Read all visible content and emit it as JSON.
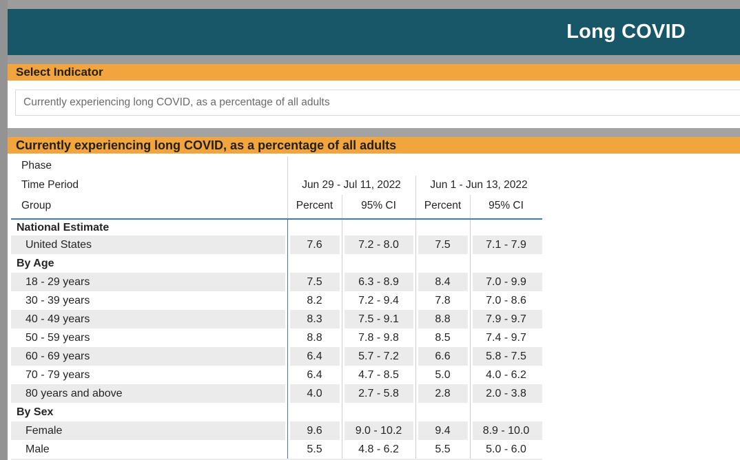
{
  "header": {
    "title": "Long COVID"
  },
  "indicator": {
    "label": "Select Indicator",
    "selected": "Currently experiencing long COVID, as a percentage of all adults"
  },
  "table": {
    "title": "Currently experiencing long COVID, as a percentage of all adults",
    "row_header_labels": [
      "Phase",
      "Time Period",
      "Group"
    ],
    "periods": [
      {
        "label": "Jun 29 - Jul 11, 2022",
        "columns": [
          "Percent",
          "95% CI"
        ]
      },
      {
        "label": "Jun 1 - Jun 13, 2022",
        "columns": [
          "Percent",
          "95% CI"
        ]
      }
    ],
    "rows": [
      {
        "type": "section",
        "label": "National Estimate"
      },
      {
        "type": "data",
        "label": "United States",
        "values": [
          "7.6",
          "7.2 - 8.0",
          "7.5",
          "7.1 - 7.9"
        ]
      },
      {
        "type": "section",
        "label": "By Age"
      },
      {
        "type": "data",
        "label": "18 - 29 years",
        "values": [
          "7.5",
          "6.3 - 8.9",
          "8.4",
          "7.0 - 9.9"
        ]
      },
      {
        "type": "data",
        "label": "30 - 39 years",
        "values": [
          "8.2",
          "7.2 - 9.4",
          "7.8",
          "7.0 - 8.6"
        ]
      },
      {
        "type": "data",
        "label": "40 - 49 years",
        "values": [
          "8.3",
          "7.5 - 9.1",
          "8.8",
          "7.9 - 9.7"
        ]
      },
      {
        "type": "data",
        "label": "50 - 59 years",
        "values": [
          "8.8",
          "7.8 - 9.8",
          "8.5",
          "7.4 - 9.7"
        ]
      },
      {
        "type": "data",
        "label": "60 - 69 years",
        "values": [
          "6.4",
          "5.7 - 7.2",
          "6.6",
          "5.8 - 7.5"
        ]
      },
      {
        "type": "data",
        "label": "70 - 79 years",
        "values": [
          "6.4",
          "4.7 - 8.5",
          "5.0",
          "4.0 - 6.2"
        ]
      },
      {
        "type": "data",
        "label": "80 years and above",
        "values": [
          "4.0",
          "2.7 - 5.8",
          "2.8",
          "2.0 - 3.8"
        ]
      },
      {
        "type": "section",
        "label": "By Sex"
      },
      {
        "type": "data",
        "label": "Female",
        "values": [
          "9.6",
          "9.0 - 10.2",
          "9.4",
          "8.9 - 10.0"
        ]
      },
      {
        "type": "data",
        "label": "Male",
        "values": [
          "5.5",
          "4.8 - 6.2",
          "5.5",
          "5.0 - 6.0"
        ]
      }
    ]
  },
  "colors": {
    "accent_teal": "#175768",
    "accent_orange": "#F2A43D",
    "grid_blue": "#3D7ABF",
    "zebra_gray": "#EBEBEB",
    "chrome_gray": "#9C9C9C",
    "title_text_on_teal": "#FFFFFF"
  }
}
